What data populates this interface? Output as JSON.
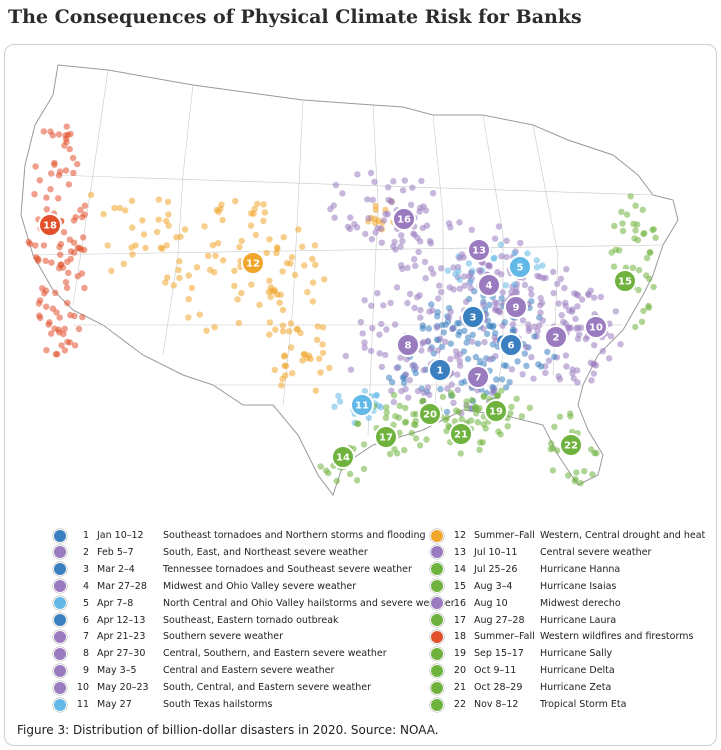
{
  "title": "The Consequences of Physical Climate Risk for Banks",
  "caption": "Figure 3: Distribution of billion-dollar disasters in 2020. Source: NOAA.",
  "colors": {
    "severe_storm": "#9a7bbf",
    "tornado": "#3a7fc0",
    "hail": "#62b8e6",
    "tropical": "#6fb33e",
    "drought": "#f0a52b",
    "wildfire": "#e2502b",
    "land": "#ffffff",
    "border": "#bdbdbd"
  },
  "events": [
    {
      "id": "1",
      "date": "Jan 10–12",
      "desc": "Southeast tornadoes and Northern storms and flooding",
      "kind": "tornado",
      "icon": "tornado-icon"
    },
    {
      "id": "2",
      "date": "Feb 5–7",
      "desc": "South, East, and Northeast severe weather",
      "kind": "severe_storm",
      "icon": "storm-icon"
    },
    {
      "id": "3",
      "date": "Mar 2–4",
      "desc": "Tennessee tornadoes and Southeast severe weather",
      "kind": "tornado",
      "icon": "tornado-icon"
    },
    {
      "id": "4",
      "date": "Mar 27–28",
      "desc": "Midwest and Ohio Valley severe weather",
      "kind": "severe_storm",
      "icon": "storm-icon"
    },
    {
      "id": "5",
      "date": "Apr 7–8",
      "desc": "North Central and Ohio Valley hailstorms and severe weather",
      "kind": "hail",
      "icon": "hail-icon"
    },
    {
      "id": "6",
      "date": "Apr 12–13",
      "desc": "Southeast, Eastern tornado outbreak",
      "kind": "tornado",
      "icon": "tornado-icon"
    },
    {
      "id": "7",
      "date": "Apr 21–23",
      "desc": "Southern severe weather",
      "kind": "severe_storm",
      "icon": "storm-icon"
    },
    {
      "id": "8",
      "date": "Apr 27–30",
      "desc": "Central, Southern, and Eastern severe weather",
      "kind": "severe_storm",
      "icon": "storm-icon"
    },
    {
      "id": "9",
      "date": "May 3–5",
      "desc": "Central and Eastern severe weather",
      "kind": "severe_storm",
      "icon": "storm-icon"
    },
    {
      "id": "10",
      "date": "May 20–23",
      "desc": "South, Central, and Eastern severe weather",
      "kind": "severe_storm",
      "icon": "storm-icon"
    },
    {
      "id": "11",
      "date": "May 27",
      "desc": "South Texas hailstorms",
      "kind": "hail",
      "icon": "hail-icon"
    },
    {
      "id": "12",
      "date": "Summer–Fall",
      "desc": "Western, Central drought and heat",
      "kind": "drought",
      "icon": "drought-icon"
    },
    {
      "id": "13",
      "date": "Jul 10–11",
      "desc": "Central severe weather",
      "kind": "severe_storm",
      "icon": "storm-icon"
    },
    {
      "id": "14",
      "date": "Jul 25–26",
      "desc": "Hurricane Hanna",
      "kind": "tropical",
      "icon": "hurricane-icon"
    },
    {
      "id": "15",
      "date": "Aug 3–4",
      "desc": "Hurricane Isaias",
      "kind": "tropical",
      "icon": "hurricane-icon"
    },
    {
      "id": "16",
      "date": "Aug 10",
      "desc": "Midwest derecho",
      "kind": "severe_storm",
      "icon": "storm-icon"
    },
    {
      "id": "17",
      "date": "Aug 27–28",
      "desc": "Hurricane Laura",
      "kind": "tropical",
      "icon": "hurricane-icon"
    },
    {
      "id": "18",
      "date": "Summer–Fall",
      "desc": "Western wildfires and firestorms",
      "kind": "wildfire",
      "icon": "wildfire-icon"
    },
    {
      "id": "19",
      "date": "Sep 15–17",
      "desc": "Hurricane Sally",
      "kind": "tropical",
      "icon": "hurricane-icon"
    },
    {
      "id": "20",
      "date": "Oct 9–11",
      "desc": "Hurricane Delta",
      "kind": "tropical",
      "icon": "hurricane-icon"
    },
    {
      "id": "21",
      "date": "Oct 28–29",
      "desc": "Hurricane Zeta",
      "kind": "tropical",
      "icon": "hurricane-icon"
    },
    {
      "id": "22",
      "date": "Nov 8–12",
      "desc": "Tropical Storm Eta",
      "kind": "tropical",
      "icon": "hurricane-icon"
    }
  ]
}
